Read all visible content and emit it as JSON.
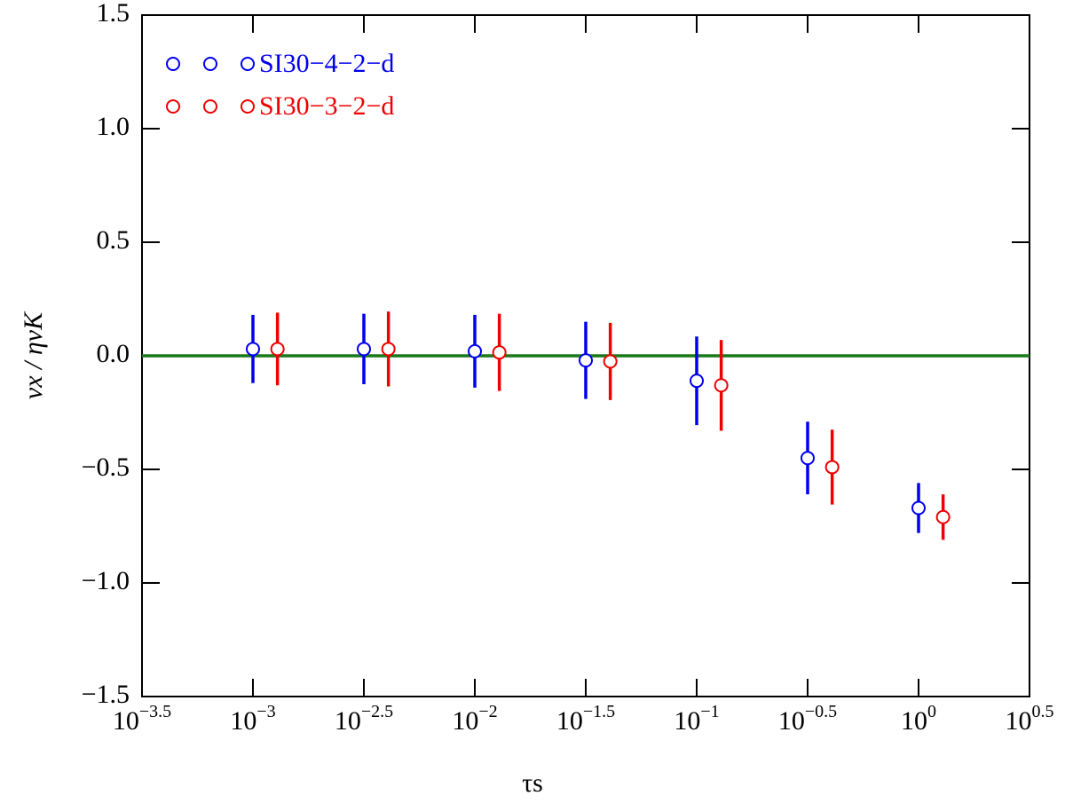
{
  "chart_data": {
    "type": "scatter",
    "xlabel": "τs",
    "ylabel": "vx / ηvK",
    "xscale": "log",
    "xlim": [
      0.00031623,
      3.1623
    ],
    "xticks": [
      {
        "value": 0.00031623,
        "label": "10−3.5"
      },
      {
        "value": 0.001,
        "label": "10−3"
      },
      {
        "value": 0.0031623,
        "label": "10−2.5"
      },
      {
        "value": 0.01,
        "label": "10−2"
      },
      {
        "value": 0.031623,
        "label": "10−1.5"
      },
      {
        "value": 0.1,
        "label": "10−1"
      },
      {
        "value": 0.31623,
        "label": "10−0.5"
      },
      {
        "value": 1,
        "label": "100"
      },
      {
        "value": 3.1623,
        "label": "100.5"
      }
    ],
    "ylim": [
      -1.5,
      1.5
    ],
    "yticks": [
      {
        "value": -1.5,
        "label": "−1.5"
      },
      {
        "value": -1,
        "label": "−1.0"
      },
      {
        "value": -0.5,
        "label": "−0.5"
      },
      {
        "value": 0,
        "label": "0.0"
      },
      0.5,
      {
        "value": 1,
        "label": "1.0"
      },
      1.5
    ],
    "hline": {
      "value": 0,
      "color": "#1a7a1a"
    },
    "legend": "upper left",
    "series": [
      {
        "name": "SI30−4−2−d",
        "color": "#0000ee",
        "x": [
          0.001,
          0.0031623,
          0.01,
          0.031623,
          0.1,
          0.31623,
          1
        ],
        "values": [
          0.03,
          0.03,
          0.02,
          -0.02,
          -0.11,
          -0.45,
          -0.67
        ],
        "errors": [
          0.15,
          0.155,
          0.16,
          0.17,
          0.195,
          0.16,
          0.11
        ]
      },
      {
        "name": "SI30−3−2−d",
        "color": "#ee0000",
        "x": [
          0.00129,
          0.00408,
          0.0129,
          0.0408,
          0.129,
          0.408,
          1.29
        ],
        "values": [
          0.03,
          0.03,
          0.015,
          -0.025,
          -0.13,
          -0.49,
          -0.71
        ],
        "errors": [
          0.16,
          0.165,
          0.17,
          0.17,
          0.2,
          0.165,
          0.1
        ]
      }
    ]
  }
}
